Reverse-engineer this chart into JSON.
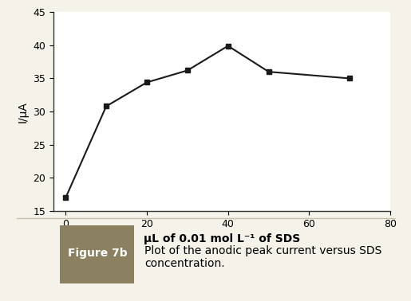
{
  "x_data": [
    0,
    10,
    20,
    30,
    40,
    50,
    70
  ],
  "y_data": [
    17,
    30.8,
    34.4,
    36.2,
    39.9,
    36.0,
    35.0
  ],
  "xlim": [
    -3,
    80
  ],
  "ylim": [
    15,
    45
  ],
  "xticks": [
    0,
    20,
    40,
    60,
    80
  ],
  "yticks": [
    15,
    20,
    25,
    30,
    35,
    40,
    45
  ],
  "xlabel": "μL of 0.01 mol L⁻¹ of SDS",
  "ylabel": "I/μA",
  "line_color": "#1a1a1a",
  "marker": "s",
  "marker_size": 5,
  "bg_color": "#ffffff",
  "outer_bg": "#f5f2ea",
  "border_color": "#c8c0a8",
  "figure_label": "Figure 7b",
  "caption": "Plot of the anodic peak current versus SDS\nconcentration.",
  "label_fontsize": 10,
  "tick_fontsize": 9,
  "ylabel_fontsize": 10,
  "xlabel_fontsize": 10,
  "caption_fontsize": 10,
  "figure_label_fontsize": 10,
  "fig_label_bg": "#8b8060",
  "caption_area_bg": "#f5f2ea"
}
